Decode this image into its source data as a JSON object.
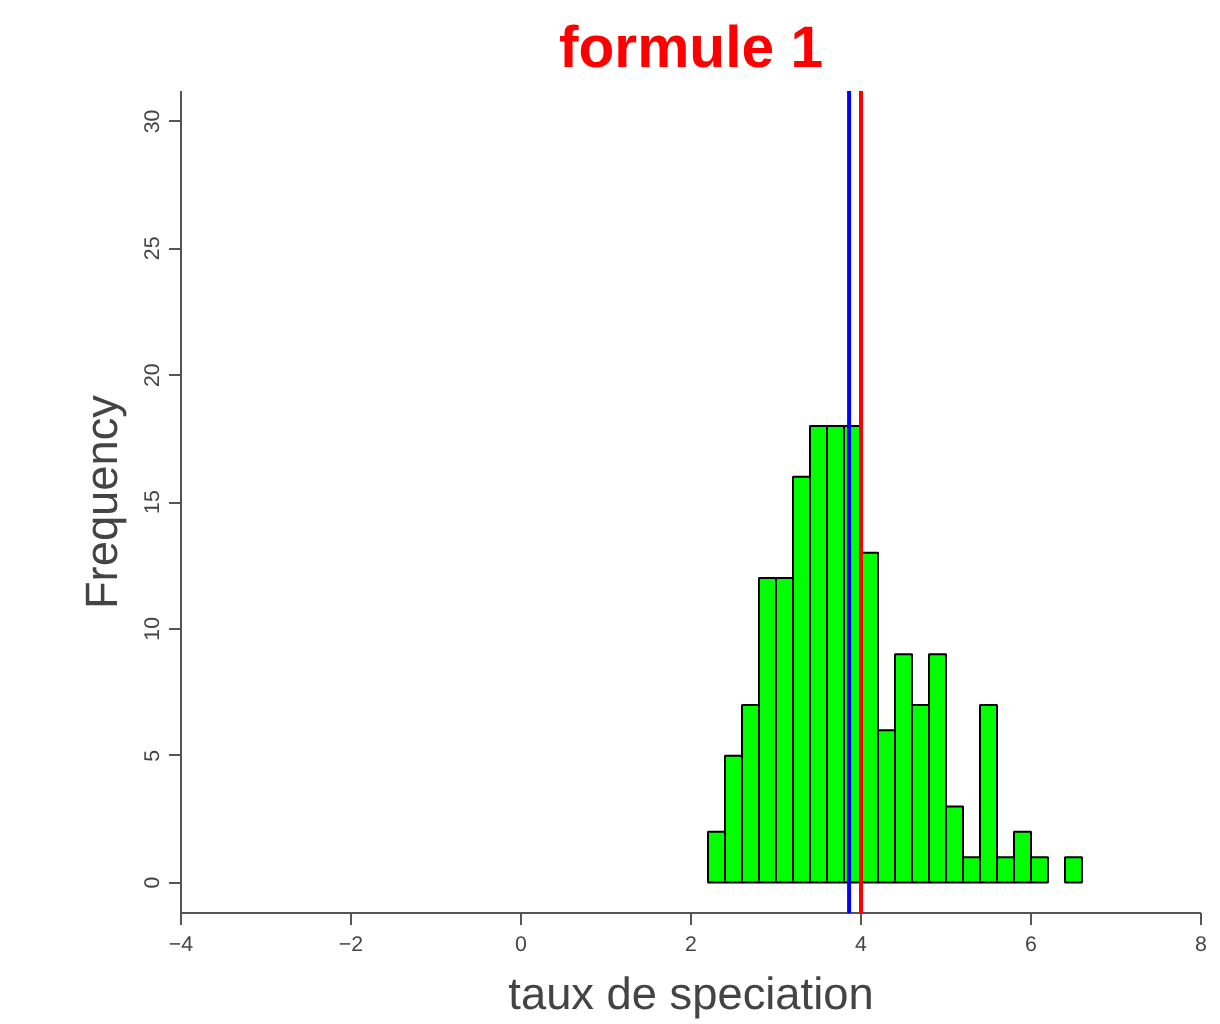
{
  "chart_data": {
    "type": "histogram",
    "title": "formule 1",
    "xlabel": "taux de speciation",
    "ylabel": "Frequency",
    "bins": [
      2.2,
      2.4,
      2.6,
      2.8,
      3.0,
      3.2,
      3.4,
      3.6,
      3.8,
      4.0,
      4.2,
      4.4,
      4.6,
      4.8,
      5.0,
      5.2,
      5.4,
      5.6,
      5.8,
      6.0,
      6.2,
      6.4,
      6.6
    ],
    "values": [
      2,
      5,
      7,
      12,
      12,
      16,
      18,
      18,
      18,
      13,
      6,
      9,
      7,
      9,
      3,
      1,
      7,
      1,
      2,
      1,
      0,
      1
    ],
    "color": "#00ff00",
    "xlim": [
      -4,
      8
    ],
    "xticks": [
      -4,
      -2,
      0,
      2,
      4,
      6,
      8
    ],
    "ylim": [
      -1.2,
      31.2
    ],
    "yticks": [
      0,
      5,
      10,
      15,
      20,
      25,
      30
    ],
    "grid": false,
    "ref_lines": [
      {
        "axis": "x",
        "value": 3.86,
        "color": "#0000ff"
      },
      {
        "axis": "x",
        "value": 4.0,
        "color": "#ff0000"
      }
    ]
  }
}
